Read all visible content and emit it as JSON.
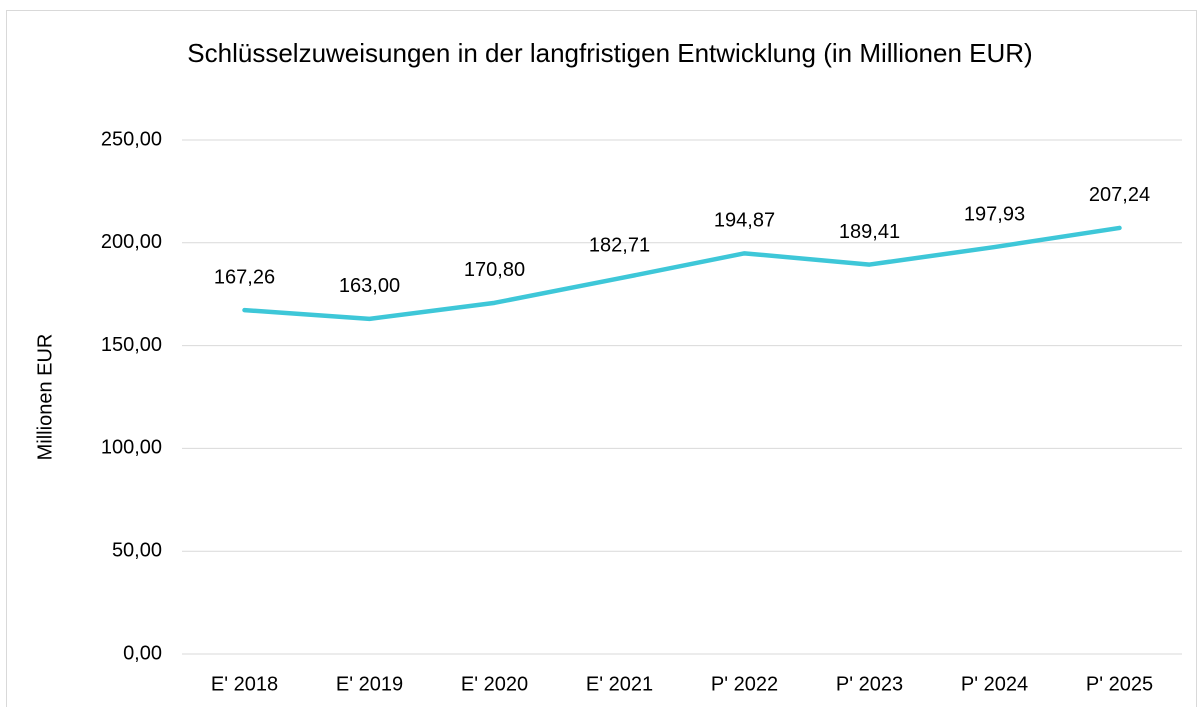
{
  "chart_data": {
    "type": "line",
    "title": "Schlüsselzuweisungen in der langfristigen Entwicklung (in Millionen EUR)",
    "ylabel": "Millionen EUR",
    "categories": [
      "E' 2018",
      "E' 2019",
      "E' 2020",
      "E' 2021",
      "P' 2022",
      "P' 2023",
      "P' 2024",
      "P' 2025"
    ],
    "values": [
      167.26,
      163.0,
      170.8,
      182.71,
      194.87,
      189.41,
      197.93,
      207.24
    ],
    "value_labels": [
      "167,26",
      "163,00",
      "170,80",
      "182,71",
      "194,87",
      "189,41",
      "197,93",
      "207,24"
    ],
    "color": "#3ec7d8",
    "ylim": [
      0,
      250
    ],
    "yticks": [
      {
        "value": 0,
        "label": "0,00"
      },
      {
        "value": 50,
        "label": "50,00"
      },
      {
        "value": 100,
        "label": "100,00"
      },
      {
        "value": 150,
        "label": "150,00"
      },
      {
        "value": 200,
        "label": "200,00"
      },
      {
        "value": 250,
        "label": "250,00"
      }
    ],
    "grid": true
  }
}
